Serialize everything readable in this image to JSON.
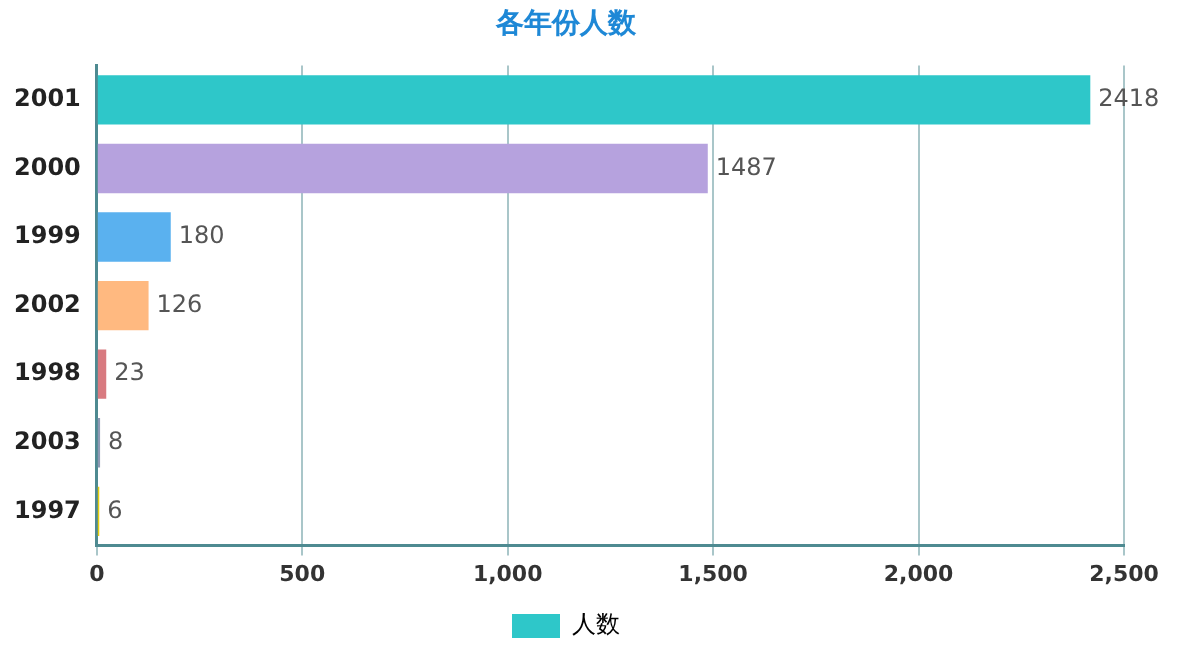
{
  "chart_data": {
    "type": "bar",
    "orientation": "horizontal",
    "title": "各年份人数",
    "categories": [
      "2001",
      "2000",
      "1999",
      "2002",
      "1998",
      "2003",
      "1997"
    ],
    "series": [
      {
        "name": "人数",
        "values": [
          2418,
          1487,
          180,
          126,
          23,
          8,
          6
        ],
        "colors": [
          "#2ec7c9",
          "#b6a2de",
          "#5ab1ef",
          "#ffb980",
          "#d87a80",
          "#8d98b3",
          "#e5cf0d"
        ]
      }
    ],
    "xlim": [
      0,
      2500
    ],
    "xticks": [
      0,
      500,
      {
        "value": 1000,
        "label": "1,000"
      },
      {
        "value": 1500,
        "label": "1,500"
      },
      {
        "value": 2000,
        "label": "2,000"
      },
      {
        "value": 2500,
        "label": "2,500"
      }
    ],
    "grid": "x",
    "legend": "bottom",
    "data_labels": true
  }
}
